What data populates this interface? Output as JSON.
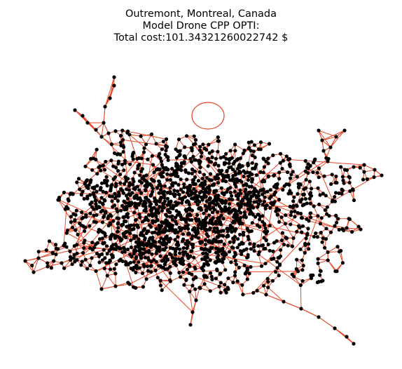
{
  "title": {
    "line1": "Outremont, Montreal, Canada",
    "line2": "Model Drone CPP OPTI:",
    "line3": "Total cost:101.34321260022742 $"
  },
  "style": {
    "edge_color": "#e8482a",
    "node_color": "#000000",
    "background": "#ffffff"
  },
  "graph": {
    "type": "street-network",
    "axes": "off",
    "self_loop": true
  }
}
